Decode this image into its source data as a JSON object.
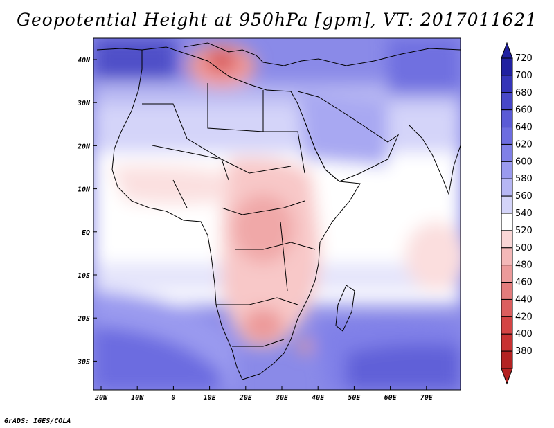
{
  "map": {
    "title": "Geopotential Height at 950hPa [gpm], VT: 2017011621",
    "footer": "GrADS: IGES/COLA",
    "x_ticks": [
      "20W",
      "10W",
      "0",
      "10E",
      "20E",
      "30E",
      "40E",
      "50E",
      "60E",
      "70E"
    ],
    "y_ticks": [
      "40N",
      "30N",
      "20N",
      "10N",
      "EQ",
      "10S",
      "20S",
      "30S"
    ],
    "colorbar": {
      "levels": [
        "720",
        "700",
        "680",
        "660",
        "640",
        "620",
        "600",
        "580",
        "560",
        "540",
        "520",
        "500",
        "480",
        "460",
        "440",
        "420",
        "400",
        "380"
      ],
      "colors": [
        "#2020a0",
        "#3434b8",
        "#4848c8",
        "#5a5ad6",
        "#6c6ce0",
        "#8080e8",
        "#9a9aef",
        "#b6b6f4",
        "#d4d4f9",
        "#ffffff",
        "#fad6d6",
        "#f4b8b8",
        "#ec9a9a",
        "#e47c7c",
        "#dc5e5e",
        "#d44444",
        "#c83232",
        "#b42222"
      ]
    }
  }
}
